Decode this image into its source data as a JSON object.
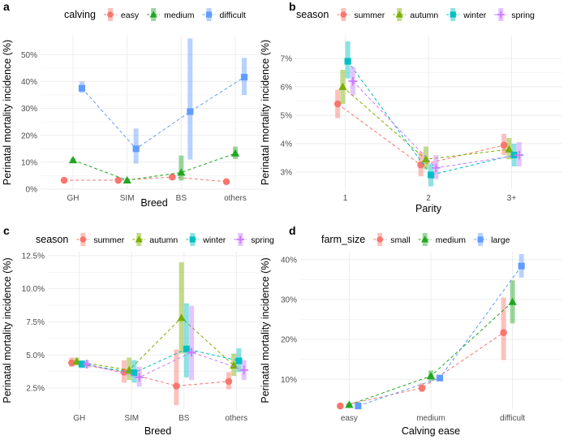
{
  "colors": {
    "red": "#F8766D",
    "green": "#22A722",
    "olive": "#7CAE00",
    "blue": "#619CFF",
    "teal": "#00BFC4",
    "purple": "#C77CFF",
    "grid": "#EBEBEB",
    "axis_text": "#4D4D4D"
  },
  "chart_data": [
    {
      "panel_label": "a",
      "type": "line",
      "ylabel": "Perinatal mortality incidence (%)",
      "xlabel": "Breed",
      "categories": [
        "GH",
        "SIM",
        "BS",
        "others"
      ],
      "ylim": [
        0,
        57
      ],
      "yticks": [
        0,
        10,
        20,
        30,
        40,
        50
      ],
      "ytick_labels": [
        "0%",
        "10%",
        "20%",
        "30%",
        "40%",
        "50%"
      ],
      "legend_title": "calving",
      "series": [
        {
          "name": "easy",
          "color": "#F8766D",
          "shape": "circle",
          "values": [
            3.3,
            3.3,
            4.5,
            2.8
          ],
          "lower": [
            2.8,
            2.8,
            3.6,
            2.3
          ],
          "upper": [
            3.8,
            3.8,
            5.5,
            3.3
          ]
        },
        {
          "name": "medium",
          "color": "#22A722",
          "shape": "triangle",
          "values": [
            10.8,
            3.3,
            6.2,
            13.3
          ],
          "lower": [
            10.0,
            2.6,
            3.2,
            11.2
          ],
          "upper": [
            11.6,
            4.0,
            12.5,
            15.8
          ]
        },
        {
          "name": "difficult",
          "color": "#619CFF",
          "shape": "square",
          "values": [
            37.5,
            15.0,
            28.8,
            41.6
          ],
          "lower": [
            35.8,
            9.5,
            11.0,
            35.0
          ],
          "upper": [
            40.0,
            22.5,
            56.0,
            48.8
          ]
        }
      ]
    },
    {
      "panel_label": "b",
      "type": "line",
      "ylabel": "Perinatal mortality incidence (%)",
      "xlabel": "Parity",
      "categories": [
        "1",
        "2",
        "3+"
      ],
      "ylim": [
        2.4,
        7.8
      ],
      "yticks": [
        3,
        4,
        5,
        6,
        7
      ],
      "ytick_labels": [
        "3%",
        "4%",
        "5%",
        "6%",
        "7%"
      ],
      "legend_title": "season",
      "series": [
        {
          "name": "summer",
          "color": "#F8766D",
          "shape": "circle",
          "values": [
            5.4,
            3.25,
            3.95
          ],
          "lower": [
            4.9,
            2.85,
            3.6
          ],
          "upper": [
            5.9,
            3.7,
            4.35
          ]
        },
        {
          "name": "autumn",
          "color": "#7CAE00",
          "shape": "triangle",
          "values": [
            6.0,
            3.45,
            3.8
          ],
          "lower": [
            5.4,
            3.1,
            3.45
          ],
          "upper": [
            6.6,
            3.9,
            4.2
          ]
        },
        {
          "name": "winter",
          "color": "#00BFC4",
          "shape": "square",
          "values": [
            6.9,
            2.9,
            3.6
          ],
          "lower": [
            6.3,
            2.5,
            3.2
          ],
          "upper": [
            7.6,
            3.3,
            4.0
          ]
        },
        {
          "name": "spring",
          "color": "#C77CFF",
          "shape": "plus",
          "values": [
            6.2,
            3.15,
            3.6
          ],
          "lower": [
            5.7,
            2.75,
            3.2
          ],
          "upper": [
            6.7,
            3.6,
            4.05
          ]
        }
      ]
    },
    {
      "panel_label": "c",
      "type": "line",
      "ylabel": "Perinatal mortality incidence (%)",
      "xlabel": "Breed",
      "categories": [
        "GH",
        "SIM",
        "BS",
        "others"
      ],
      "ylim": [
        0.9,
        12.8
      ],
      "yticks": [
        2.5,
        5.0,
        7.5,
        10.0,
        12.5
      ],
      "ytick_labels": [
        "2.5%",
        "5.0%",
        "7.5%",
        "10.0%",
        "12.5%"
      ],
      "legend_title": "season",
      "series": [
        {
          "name": "summer",
          "color": "#F8766D",
          "shape": "circle",
          "values": [
            4.4,
            3.7,
            2.65,
            3.0
          ],
          "lower": [
            4.1,
            2.9,
            1.2,
            2.4
          ],
          "upper": [
            4.8,
            4.6,
            5.4,
            3.7
          ]
        },
        {
          "name": "autumn",
          "color": "#7CAE00",
          "shape": "triangle",
          "values": [
            4.5,
            3.85,
            7.8,
            4.2
          ],
          "lower": [
            4.2,
            3.1,
            5.1,
            3.4
          ],
          "upper": [
            4.8,
            4.8,
            12.0,
            5.1
          ]
        },
        {
          "name": "winter",
          "color": "#00BFC4",
          "shape": "square",
          "values": [
            4.3,
            3.65,
            5.45,
            4.55
          ],
          "lower": [
            4.0,
            2.9,
            3.3,
            3.7
          ],
          "upper": [
            4.6,
            4.6,
            8.9,
            5.5
          ]
        },
        {
          "name": "spring",
          "color": "#C77CFF",
          "shape": "plus",
          "values": [
            4.3,
            3.3,
            5.2,
            3.85
          ],
          "lower": [
            4.0,
            2.6,
            3.1,
            3.1
          ],
          "upper": [
            4.6,
            4.1,
            8.7,
            4.6
          ]
        }
      ]
    },
    {
      "panel_label": "d",
      "type": "line",
      "ylabel": "Perinatal mortality incidence (%)",
      "xlabel": "Calving ease",
      "categories": [
        "easy",
        "medium",
        "difficult"
      ],
      "ylim": [
        2.5,
        42
      ],
      "yticks": [
        10,
        20,
        30,
        40
      ],
      "ytick_labels": [
        "10%",
        "20%",
        "30%",
        "40%"
      ],
      "legend_title": "farm_size",
      "series": [
        {
          "name": "small",
          "color": "#F8766D",
          "shape": "circle",
          "values": [
            3.3,
            7.8,
            21.7
          ],
          "lower": [
            3.0,
            6.8,
            14.8
          ],
          "upper": [
            3.6,
            9.0,
            30.5
          ]
        },
        {
          "name": "medium",
          "color": "#22A722",
          "shape": "triangle",
          "values": [
            3.6,
            10.8,
            29.4
          ],
          "lower": [
            3.2,
            9.6,
            24.0
          ],
          "upper": [
            4.0,
            12.2,
            34.8
          ]
        },
        {
          "name": "large",
          "color": "#619CFF",
          "shape": "square",
          "values": [
            3.3,
            10.3,
            38.4
          ],
          "lower": [
            3.0,
            9.5,
            35.5
          ],
          "upper": [
            3.7,
            11.0,
            41.4
          ]
        }
      ]
    }
  ]
}
